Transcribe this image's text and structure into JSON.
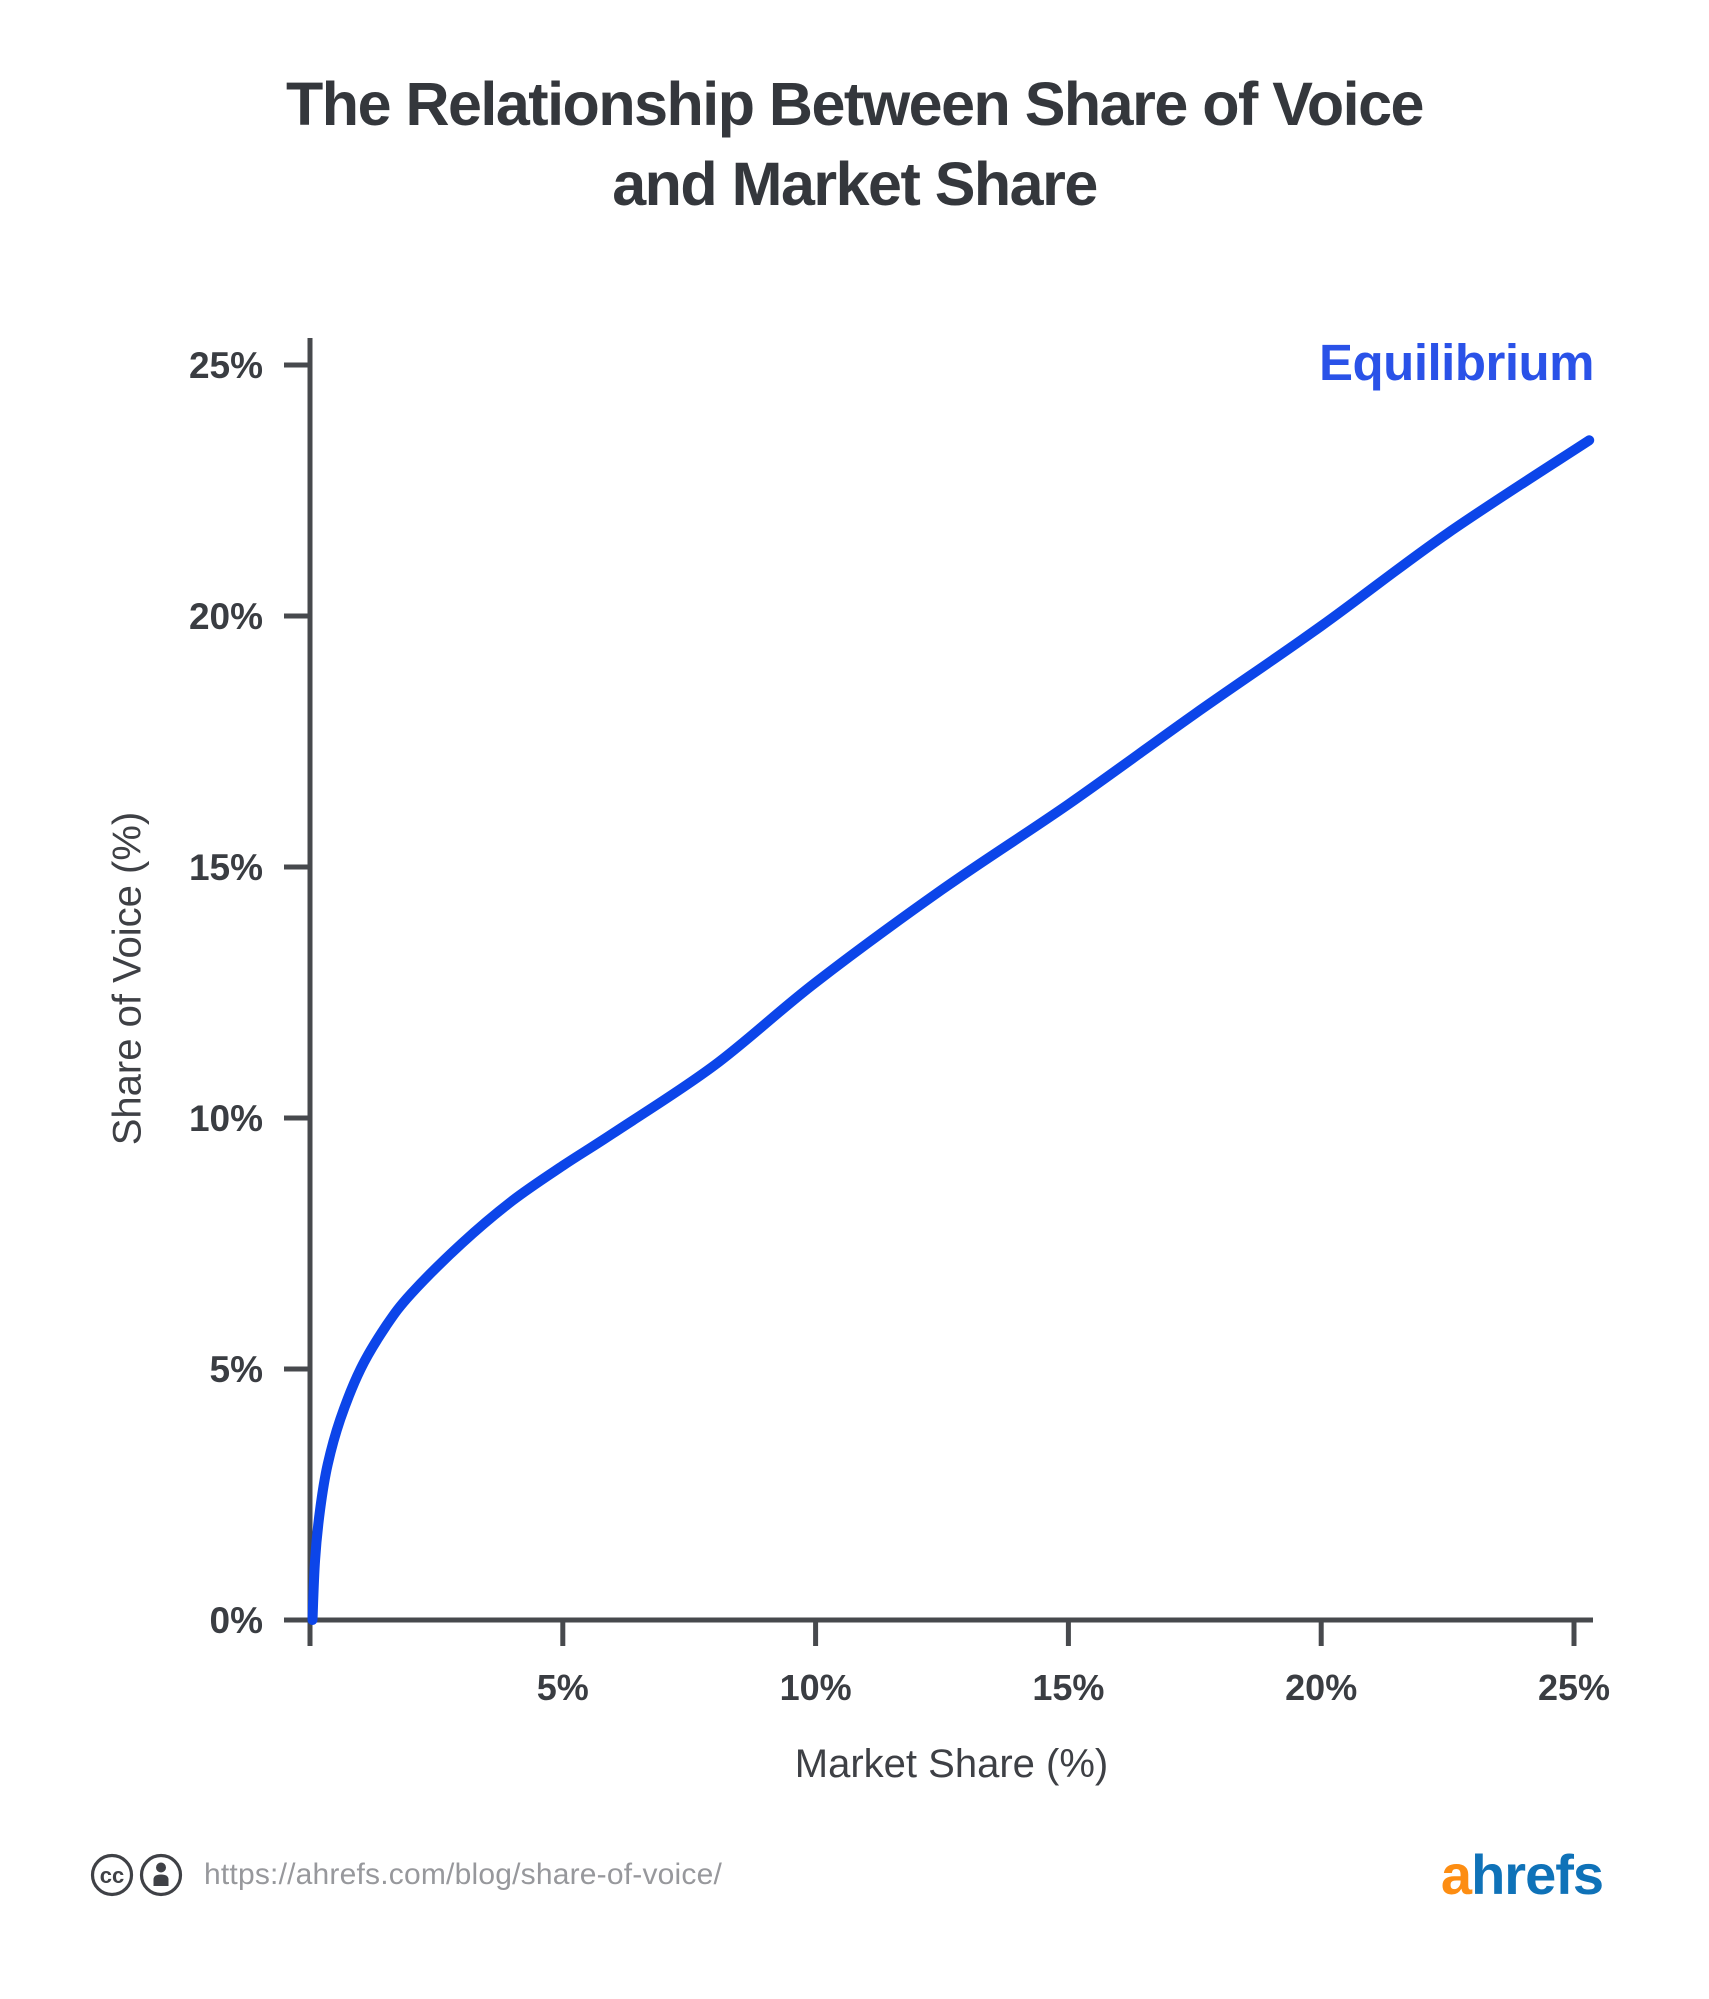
{
  "title": {
    "line1": "The Relationship Between Share of Voice",
    "line2": "and Market Share"
  },
  "annotation": {
    "label": "Equilibrium"
  },
  "chart_data": {
    "type": "line",
    "title": "The Relationship Between Share of Voice and Market Share",
    "xlabel": "Market Share (%)",
    "ylabel": "Share of Voice (%)",
    "xlim": [
      0,
      25.5
    ],
    "ylim": [
      0,
      25
    ],
    "grid": false,
    "annotation": {
      "text": "Equilibrium",
      "position": "top-right"
    },
    "x_ticks": [
      {
        "value": 0,
        "label": ""
      },
      {
        "value": 5,
        "label": "5%"
      },
      {
        "value": 10,
        "label": "10%"
      },
      {
        "value": 15,
        "label": "15%"
      },
      {
        "value": 20,
        "label": "20%"
      },
      {
        "value": 25,
        "label": "25%"
      }
    ],
    "y_ticks": [
      {
        "value": 0,
        "label": "0%"
      },
      {
        "value": 5,
        "label": "5%"
      },
      {
        "value": 10,
        "label": "10%"
      },
      {
        "value": 15,
        "label": "15%"
      },
      {
        "value": 20,
        "label": "20%"
      },
      {
        "value": 25,
        "label": "25%"
      }
    ],
    "series": [
      {
        "name": "Equilibrium",
        "color": "#0c45e9",
        "points": [
          [
            0.05,
            0.0
          ],
          [
            0.1,
            1.2
          ],
          [
            0.2,
            2.2
          ],
          [
            0.35,
            3.1
          ],
          [
            0.6,
            4.0
          ],
          [
            1.0,
            5.0
          ],
          [
            1.5,
            5.85
          ],
          [
            2.0,
            6.5
          ],
          [
            3.0,
            7.5
          ],
          [
            4.0,
            8.35
          ],
          [
            5.0,
            9.05
          ],
          [
            6.0,
            9.7
          ],
          [
            8.0,
            11.05
          ],
          [
            10.0,
            12.7
          ],
          [
            12.5,
            14.55
          ],
          [
            15.0,
            16.25
          ],
          [
            17.5,
            18.05
          ],
          [
            20.0,
            19.8
          ],
          [
            22.5,
            21.65
          ],
          [
            25.3,
            23.5
          ]
        ]
      }
    ]
  },
  "footer": {
    "cc_text": "cc",
    "url": "https://ahrefs.com/blog/share-of-voice/",
    "logo": {
      "a": "a",
      "rest": "hrefs"
    }
  },
  "colors": {
    "curve": "#0c45e9",
    "annotation_text": "#2a52e8",
    "title_text": "#34373c",
    "axis": "#47494d",
    "tick_label": "#3a3d42",
    "axis_title": "#3e4045",
    "footer_url": "#97989c",
    "logo_a": "#fd8d12",
    "logo_hrefs": "#0f72b8"
  }
}
